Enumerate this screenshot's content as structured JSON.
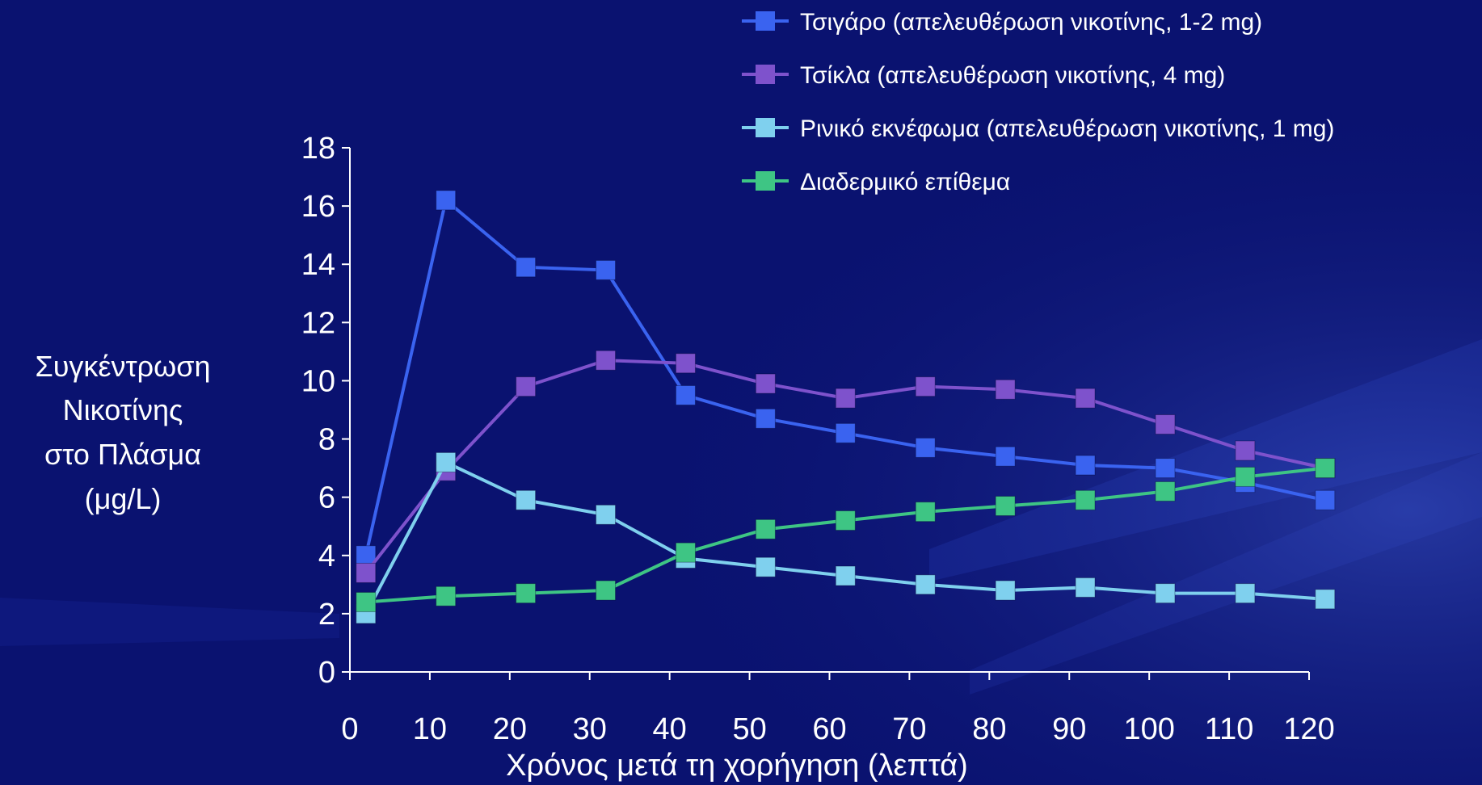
{
  "chart_data": {
    "type": "line",
    "title": "",
    "ylabel": [
      "Συγκέντρωση",
      "Νικοτίνης",
      "στο Πλάσμα",
      "(μg/L)"
    ],
    "xlabel": "Χρόνος μετά τη χορήγηση (λεπτά)",
    "x_ticks": [
      0,
      10,
      20,
      30,
      40,
      50,
      60,
      70,
      80,
      90,
      100,
      110,
      120
    ],
    "y_ticks": [
      0,
      2,
      4,
      6,
      8,
      10,
      12,
      14,
      16,
      18
    ],
    "xlim": [
      0,
      120
    ],
    "ylim": [
      0,
      18
    ],
    "grid": false,
    "legend_position": "top-right",
    "x": [
      2,
      12,
      22,
      32,
      42,
      52,
      62,
      72,
      82,
      92,
      102,
      112,
      122
    ],
    "series": [
      {
        "name": "Τσιγάρο (απελευθέρωση νικοτίνης, 1-2 mg)",
        "color": "#3a63f0",
        "values": [
          4.0,
          16.2,
          13.9,
          13.8,
          9.5,
          8.7,
          8.2,
          7.7,
          7.4,
          7.1,
          7.0,
          6.5,
          5.9
        ]
      },
      {
        "name": "Τσίκλα (απελευθέρωση νικοτίνης, 4 mg)",
        "color": "#7e52cc",
        "values": [
          3.4,
          6.9,
          9.8,
          10.7,
          10.6,
          9.9,
          9.4,
          9.8,
          9.7,
          9.4,
          8.5,
          7.6,
          7.0
        ]
      },
      {
        "name": "Ρινικό εκνέφωμα (απελευθέρωση νικοτίνης, 1 mg)",
        "color": "#7fd0ee",
        "values": [
          2.0,
          7.2,
          5.9,
          5.4,
          3.9,
          3.6,
          3.3,
          3.0,
          2.8,
          2.9,
          2.7,
          2.7,
          2.5
        ]
      },
      {
        "name": "Διαδερμικό επίθεμα",
        "color": "#3ec584",
        "values": [
          2.4,
          2.6,
          2.7,
          2.8,
          4.1,
          4.9,
          5.2,
          5.5,
          5.7,
          5.9,
          6.2,
          6.7,
          7.0
        ]
      }
    ]
  }
}
